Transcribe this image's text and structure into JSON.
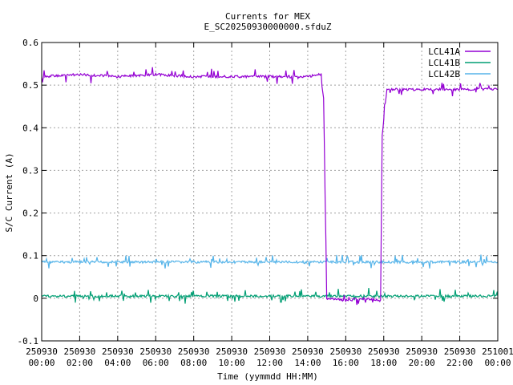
{
  "chart_data": {
    "type": "line",
    "title": "Currents for MEX",
    "subtitle": "E_SC20250930000000.sfduZ",
    "xlabel": "Time (yymmdd HH:MM)",
    "ylabel": "S/C Current (A)",
    "xlim": [
      "2025-09-30 00:00",
      "2025-10-01 00:00"
    ],
    "ylim": [
      -0.1,
      0.6
    ],
    "grid": true,
    "legend_position": "top-right",
    "x_ticks": [
      {
        "date": "250930",
        "time": "00:00"
      },
      {
        "date": "250930",
        "time": "02:00"
      },
      {
        "date": "250930",
        "time": "04:00"
      },
      {
        "date": "250930",
        "time": "06:00"
      },
      {
        "date": "250930",
        "time": "08:00"
      },
      {
        "date": "250930",
        "time": "10:00"
      },
      {
        "date": "250930",
        "time": "12:00"
      },
      {
        "date": "250930",
        "time": "14:00"
      },
      {
        "date": "250930",
        "time": "16:00"
      },
      {
        "date": "250930",
        "time": "18:00"
      },
      {
        "date": "250930",
        "time": "20:00"
      },
      {
        "date": "250930",
        "time": "22:00"
      },
      {
        "date": "251001",
        "time": "00:00"
      }
    ],
    "y_ticks": [
      "-0.1",
      "0",
      "0.1",
      "0.2",
      "0.3",
      "0.4",
      "0.5",
      "0.6"
    ],
    "y_tick_values": [
      -0.1,
      0,
      0.1,
      0.2,
      0.3,
      0.4,
      0.5,
      0.6
    ],
    "series": [
      {
        "name": "LCL41A",
        "color": "#9400d3",
        "x": [
          "2025-09-30 00:00",
          "2025-09-30 02:00",
          "2025-09-30 04:00",
          "2025-09-30 06:00",
          "2025-09-30 08:00",
          "2025-09-30 10:00",
          "2025-09-30 12:00",
          "2025-09-30 14:00",
          "2025-09-30 14:40",
          "2025-09-30 14:50",
          "2025-09-30 15:00",
          "2025-09-30 16:00",
          "2025-09-30 17:00",
          "2025-09-30 17:50",
          "2025-09-30 17:55",
          "2025-09-30 18:05",
          "2025-09-30 18:10",
          "2025-09-30 20:00",
          "2025-09-30 22:00",
          "2025-10-01 00:00"
        ],
        "values": [
          0.52,
          0.525,
          0.52,
          0.525,
          0.52,
          0.52,
          0.52,
          0.52,
          0.525,
          0.47,
          0.0,
          -0.005,
          0.0,
          -0.005,
          0.38,
          0.46,
          0.49,
          0.49,
          0.49,
          0.49
        ]
      },
      {
        "name": "LCL41B",
        "color": "#009e73",
        "x": [
          "2025-09-30 00:00",
          "2025-10-01 00:00"
        ],
        "values": [
          0.005,
          0.005
        ]
      },
      {
        "name": "LCL42B",
        "color": "#56b4e9",
        "x": [
          "2025-09-30 00:00",
          "2025-10-01 00:00"
        ],
        "values": [
          0.085,
          0.085
        ]
      }
    ]
  }
}
